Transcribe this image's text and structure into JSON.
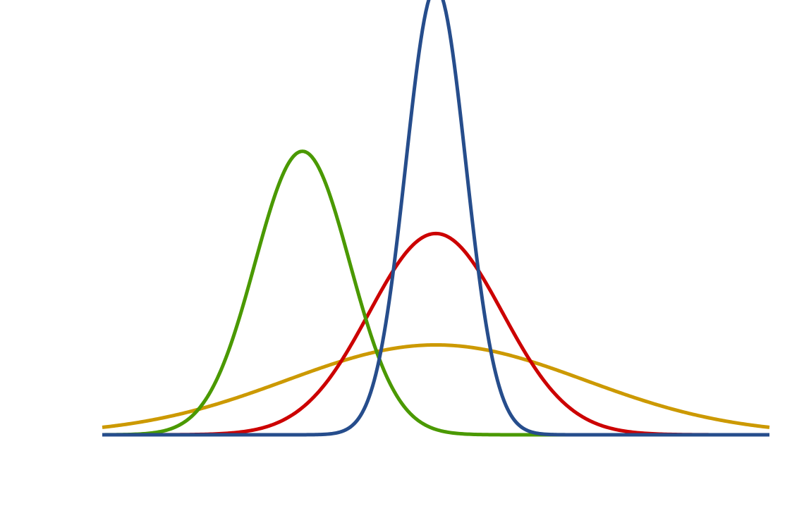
{
  "chart_data": {
    "type": "line",
    "title": "",
    "xlabel": "",
    "ylabel": "",
    "xlim": [
      -5,
      5
    ],
    "ylim": [
      0,
      0.9
    ],
    "grid": false,
    "legend": "none",
    "series": [
      {
        "mu": 0,
        "sigma": 2.24,
        "color": "#CC9900"
      },
      {
        "mu": 0,
        "sigma": 1.0,
        "color": "#CC0000"
      },
      {
        "mu": -2,
        "sigma": 0.71,
        "color": "#4A9900"
      },
      {
        "mu": 0,
        "sigma": 0.45,
        "color": "#264D8C"
      }
    ]
  }
}
